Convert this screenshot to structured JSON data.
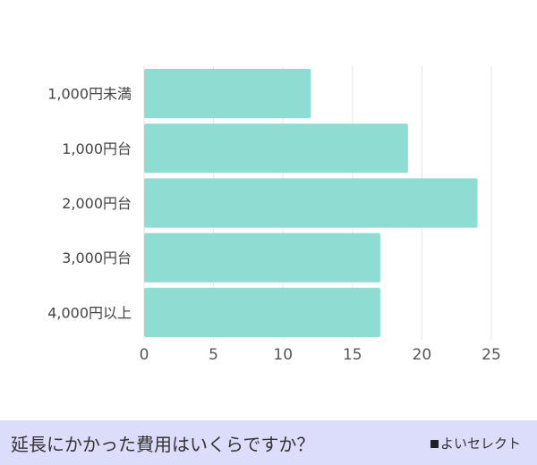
{
  "chart_data": {
    "type": "bar",
    "orientation": "horizontal",
    "categories": [
      "1,000円未満",
      "1,000円台",
      "2,000円台",
      "3,000円台",
      "4,000円以上"
    ],
    "values": [
      12,
      19,
      24,
      17,
      17
    ],
    "xlim": [
      0,
      25
    ],
    "xticks": [
      0,
      5,
      10,
      15,
      20,
      25
    ],
    "grid": true,
    "bar_color": "#8fddd2"
  },
  "footer": {
    "title": "延長にかかった費用はいくらですか？",
    "brand": "よいセレクト",
    "background": "#dcdcfb"
  }
}
